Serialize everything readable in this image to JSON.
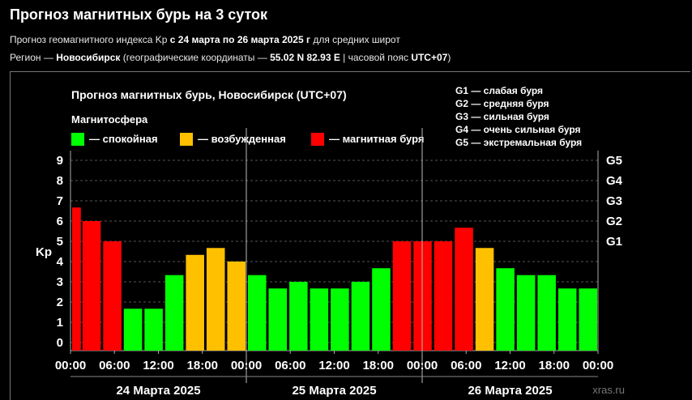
{
  "header": {
    "title": "Прогноз магнитных бурь на 3 суток",
    "line1": [
      "Прогноз геомагнитного индекса Kp ",
      "с 24 марта по 26 марта 2025 г",
      " для средних широт"
    ],
    "line2": [
      "Регион — ",
      "Новосибирск",
      " (географические координаты — ",
      "55.02 N 82.93 E",
      " | часовой пояс ",
      "UTC+07",
      ")"
    ]
  },
  "legend": {
    "section": "Магнитосфера",
    "items": [
      {
        "label": "— спокойная",
        "color": "#00ff00"
      },
      {
        "label": "— возбужденная",
        "color": "#ffc000"
      },
      {
        "label": "— магнитная буря",
        "color": "#ff0000"
      }
    ],
    "storm_levels": [
      "G1 — слабая буря",
      "G2 — средняя буря",
      "G3 — сильная буря",
      "G4 — очень сильная буря",
      "G5 — экстремальная буря"
    ]
  },
  "watermark": "xras.ru",
  "chart_data": {
    "type": "bar",
    "title": "Прогноз магнитных бурь, Новосибирск (UTC+07)",
    "ylabel": "Kp",
    "ylim": [
      0,
      9
    ],
    "y_ticks": [
      "0",
      "1",
      "2",
      "3",
      "4",
      "5",
      "6",
      "7",
      "8",
      "9"
    ],
    "right_ticks": [
      {
        "label": "G1",
        "kp": 5
      },
      {
        "label": "G2",
        "kp": 6
      },
      {
        "label": "G3",
        "kp": 7
      },
      {
        "label": "G4",
        "kp": 8
      },
      {
        "label": "G5",
        "kp": 9
      }
    ],
    "x_ticks": [
      "00:00",
      "06:00",
      "12:00",
      "18:00",
      "00:00",
      "06:00",
      "12:00",
      "18:00",
      "00:00",
      "06:00",
      "12:00",
      "18:00",
      "00:00"
    ],
    "days": [
      "24 Марта 2025",
      "25 Марта 2025",
      "26 Марта 2025"
    ],
    "grid": true,
    "colors": {
      "quiet": "#00ff00",
      "active": "#ffc000",
      "storm": "#ff0000"
    },
    "series": [
      {
        "values": [
          6.67,
          6.0,
          5.0,
          1.67,
          1.67,
          3.33,
          4.33,
          4.67,
          4.0,
          3.33,
          2.67,
          3.0,
          2.67,
          2.67,
          3.0,
          3.67,
          5.0,
          5.0,
          5.0,
          5.67,
          4.67,
          3.67,
          3.33,
          3.33,
          2.67,
          2.67
        ]
      }
    ]
  }
}
